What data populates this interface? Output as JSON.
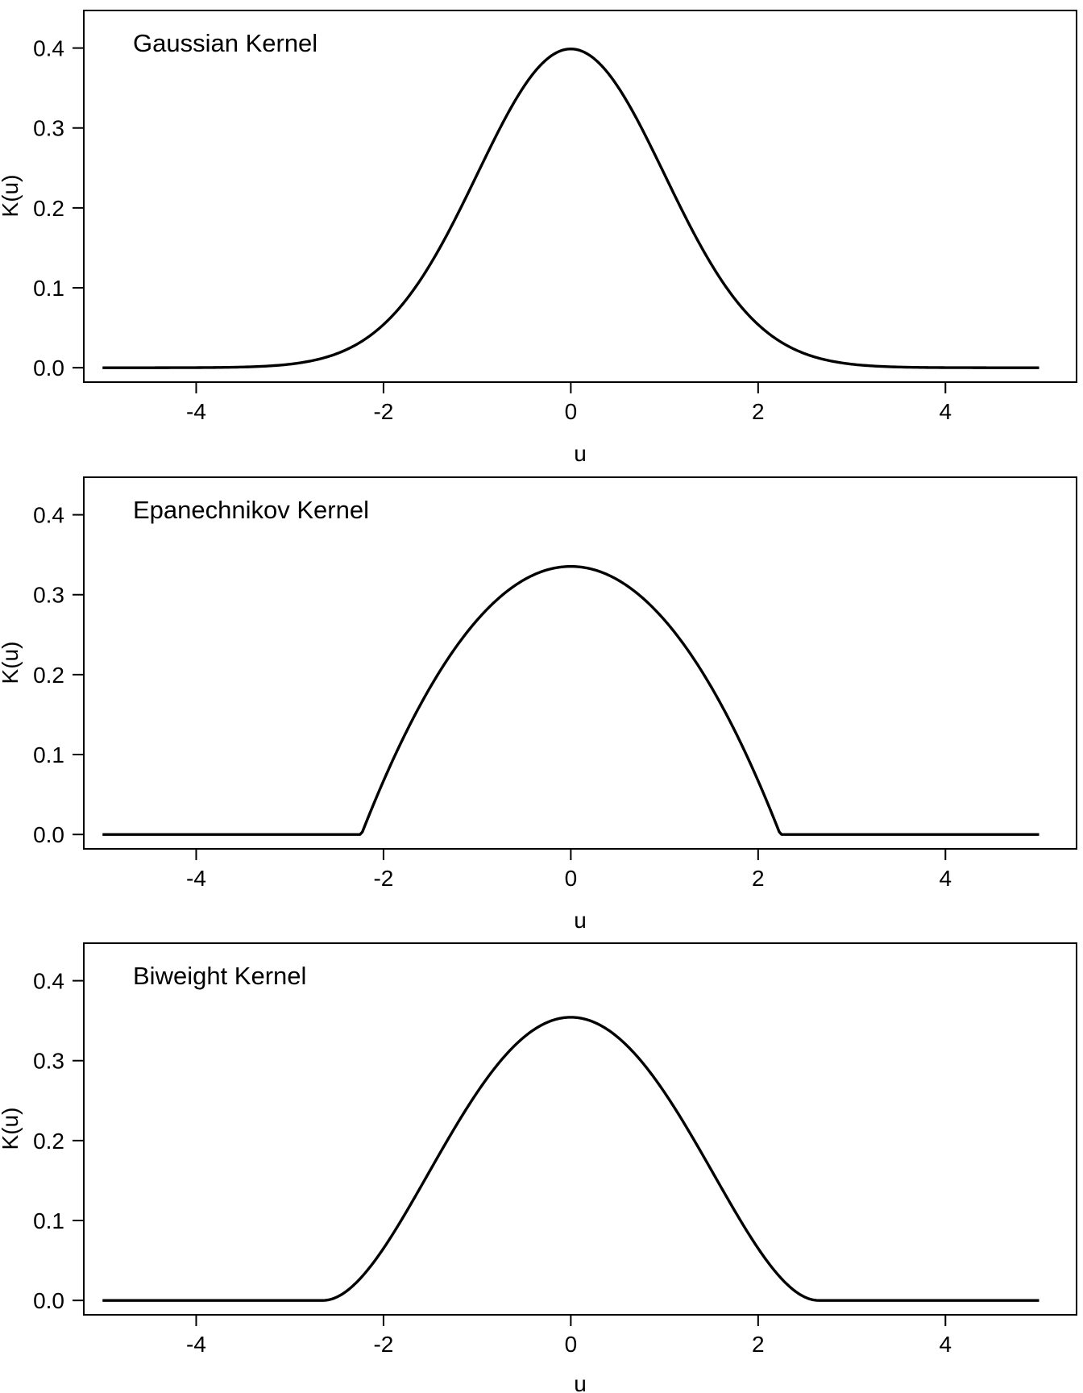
{
  "chart_data": [
    {
      "type": "line",
      "kernel": "gaussian",
      "annotation": "Gaussian Kernel",
      "xlabel": "u",
      "ylabel": "K(u)",
      "xlim": [
        -5.2,
        5.4
      ],
      "ylim": [
        -0.018,
        0.447
      ],
      "xticks": [
        -4,
        -2,
        0,
        2,
        4
      ],
      "yticks": [
        0.0,
        0.1,
        0.2,
        0.3,
        0.4
      ],
      "x_range": [
        -5,
        5
      ],
      "support": null,
      "peak": 0.3989,
      "grid": false,
      "legend": "none"
    },
    {
      "type": "line",
      "kernel": "epanechnikov",
      "annotation": "Epanechnikov Kernel",
      "xlabel": "u",
      "ylabel": "K(u)",
      "xlim": [
        -5.2,
        5.4
      ],
      "ylim": [
        -0.018,
        0.447
      ],
      "xticks": [
        -4,
        -2,
        0,
        2,
        4
      ],
      "yticks": [
        0.0,
        0.1,
        0.2,
        0.3,
        0.4
      ],
      "x_range": [
        -5,
        5
      ],
      "support": 2.236,
      "peak": 0.3354,
      "grid": false,
      "legend": "none"
    },
    {
      "type": "line",
      "kernel": "biweight",
      "annotation": "Biweight Kernel",
      "xlabel": "u",
      "ylabel": "K(u)",
      "xlim": [
        -5.2,
        5.4
      ],
      "ylim": [
        -0.018,
        0.447
      ],
      "xticks": [
        -4,
        -2,
        0,
        2,
        4
      ],
      "yticks": [
        0.0,
        0.1,
        0.2,
        0.3,
        0.4
      ],
      "x_range": [
        -5,
        5
      ],
      "support": 2.646,
      "peak": 0.3543,
      "grid": false,
      "legend": "none"
    }
  ]
}
